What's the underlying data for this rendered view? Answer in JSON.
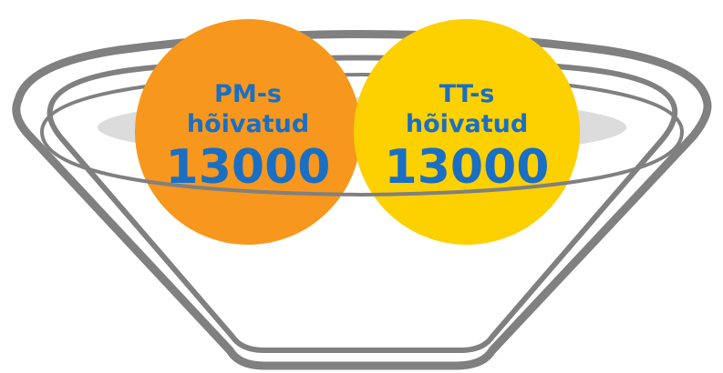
{
  "items": [
    {
      "label": [
        "PM-s",
        "hõivatud"
      ],
      "value": 13000,
      "color": "#f7971d"
    },
    {
      "label": [
        "TT-s",
        "hõivatud"
      ],
      "value": 13000,
      "color": "#fdd000"
    }
  ]
}
